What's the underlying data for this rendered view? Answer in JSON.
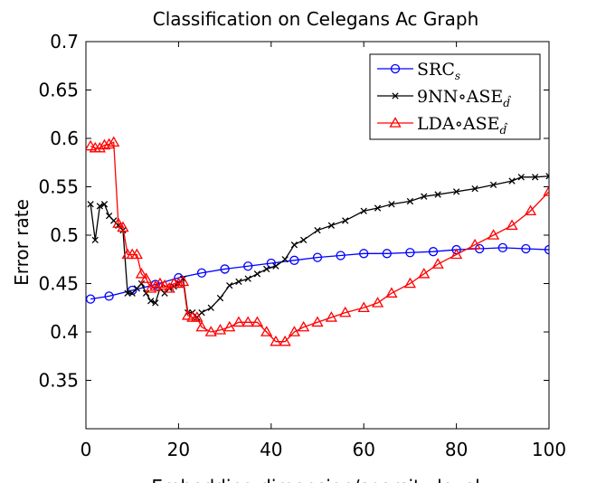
{
  "chart_data": {
    "type": "line",
    "title": "Classification on Celegans Ac Graph",
    "xlabel": "Embedding dimension/sparsity level",
    "ylabel": "Error rate",
    "xlim": [
      0,
      100
    ],
    "ylim": [
      0.3,
      0.7
    ],
    "xticks": [
      0,
      20,
      40,
      60,
      80,
      100
    ],
    "yticks": [
      0.35,
      0.4,
      0.45,
      0.5,
      0.55,
      0.6,
      0.65,
      0.7
    ],
    "xtick_labels": [
      "0",
      "20",
      "40",
      "60",
      "80",
      "100"
    ],
    "ytick_labels": [
      "0.35",
      "0.4",
      "0.45",
      "0.5",
      "0.55",
      "0.6",
      "0.65",
      "0.7"
    ],
    "grid": false,
    "legend_position": "top-right",
    "series": [
      {
        "name": "SRC_s",
        "label_main": "SRC",
        "label_sub": "s",
        "color": "#0000ff",
        "marker": "circle",
        "x": [
          1,
          5,
          10,
          15,
          20,
          25,
          30,
          35,
          40,
          45,
          50,
          55,
          60,
          65,
          70,
          75,
          80,
          85,
          90,
          95,
          100
        ],
        "y": [
          0.434,
          0.437,
          0.443,
          0.449,
          0.456,
          0.461,
          0.465,
          0.468,
          0.471,
          0.474,
          0.477,
          0.479,
          0.481,
          0.481,
          0.482,
          0.483,
          0.485,
          0.486,
          0.487,
          0.486,
          0.485
        ]
      },
      {
        "name": "9NN∘ASE_d̂",
        "label_main": "9NN∘ASE",
        "label_sub": "d̂",
        "color": "#000000",
        "marker": "x",
        "x": [
          1,
          2,
          3,
          4,
          5,
          6,
          7,
          8,
          9,
          10,
          11,
          12,
          13,
          14,
          15,
          16,
          17,
          18,
          19,
          20,
          21,
          22,
          23,
          24,
          25,
          27,
          29,
          31,
          33,
          35,
          37,
          39,
          41,
          43,
          45,
          47,
          50,
          53,
          56,
          60,
          63,
          66,
          70,
          73,
          76,
          80,
          84,
          88,
          92,
          94,
          97,
          100
        ],
        "y": [
          0.532,
          0.495,
          0.53,
          0.532,
          0.52,
          0.515,
          0.51,
          0.505,
          0.44,
          0.44,
          0.445,
          0.45,
          0.44,
          0.432,
          0.43,
          0.445,
          0.44,
          0.445,
          0.447,
          0.45,
          0.455,
          0.42,
          0.42,
          0.415,
          0.42,
          0.425,
          0.435,
          0.448,
          0.452,
          0.455,
          0.46,
          0.465,
          0.468,
          0.475,
          0.49,
          0.495,
          0.505,
          0.51,
          0.515,
          0.525,
          0.528,
          0.532,
          0.535,
          0.54,
          0.542,
          0.545,
          0.548,
          0.552,
          0.556,
          0.56,
          0.56,
          0.561
        ]
      },
      {
        "name": "LDA∘ASE_d̂",
        "label_main": "LDA∘ASE",
        "label_sub": "d̂",
        "color": "#ff0000",
        "marker": "triangle",
        "x": [
          1,
          2,
          3,
          4,
          5,
          6,
          7,
          8,
          9,
          10,
          11,
          12,
          13,
          14,
          15,
          16,
          17,
          18,
          19,
          20,
          21,
          22,
          23,
          24,
          25,
          27,
          29,
          31,
          33,
          35,
          37,
          39,
          41,
          43,
          45,
          47,
          50,
          53,
          56,
          60,
          63,
          66,
          70,
          73,
          76,
          80,
          84,
          88,
          92,
          96,
          100
        ],
        "y": [
          0.592,
          0.59,
          0.59,
          0.593,
          0.594,
          0.596,
          0.512,
          0.508,
          0.48,
          0.48,
          0.48,
          0.46,
          0.455,
          0.445,
          0.447,
          0.45,
          0.448,
          0.445,
          0.45,
          0.45,
          0.452,
          0.417,
          0.415,
          0.415,
          0.405,
          0.4,
          0.402,
          0.405,
          0.41,
          0.41,
          0.41,
          0.4,
          0.39,
          0.39,
          0.4,
          0.405,
          0.41,
          0.415,
          0.42,
          0.425,
          0.43,
          0.44,
          0.45,
          0.46,
          0.47,
          0.48,
          0.49,
          0.5,
          0.51,
          0.525,
          0.545
        ]
      }
    ]
  }
}
